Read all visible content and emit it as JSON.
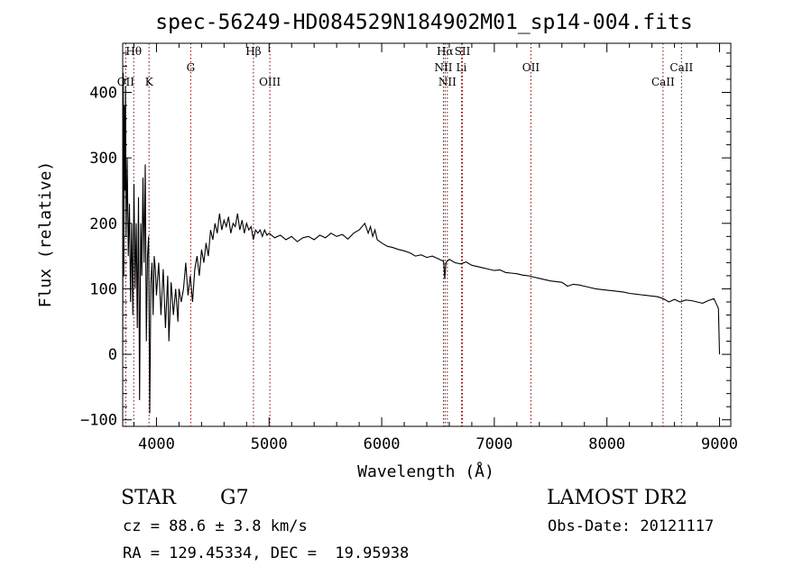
{
  "chart_data": {
    "type": "line",
    "title": "spec-56249-HD084529N184902M01_sp14-004.fits",
    "xlabel": "Wavelength (Å)",
    "ylabel": "Flux (relative)",
    "xlim": [
      3700,
      9100
    ],
    "ylim": [
      -110,
      475
    ],
    "xticks": [
      4000,
      5000,
      6000,
      7000,
      8000,
      9000
    ],
    "yticks": [
      -100,
      0,
      100,
      200,
      300,
      400
    ],
    "x_tick_labels": [
      "4000",
      "5000",
      "6000",
      "7000",
      "8000",
      "9000"
    ],
    "y_tick_labels": [
      "−100",
      "0",
      "100",
      "200",
      "300",
      "400"
    ],
    "line_color": "#000000",
    "marker_color": "#8b0000",
    "series": [
      {
        "values": [
          [
            3700,
            0
          ],
          [
            3705,
            430
          ],
          [
            3710,
            120
          ],
          [
            3715,
            380
          ],
          [
            3720,
            250
          ],
          [
            3725,
            410
          ],
          [
            3730,
            180
          ],
          [
            3740,
            300
          ],
          [
            3750,
            150
          ],
          [
            3760,
            230
          ],
          [
            3770,
            80
          ],
          [
            3780,
            200
          ],
          [
            3790,
            60
          ],
          [
            3800,
            260
          ],
          [
            3810,
            100
          ],
          [
            3820,
            200
          ],
          [
            3830,
            40
          ],
          [
            3840,
            240
          ],
          [
            3850,
            -70
          ],
          [
            3860,
            200
          ],
          [
            3870,
            120
          ],
          [
            3880,
            270
          ],
          [
            3890,
            140
          ],
          [
            3900,
            290
          ],
          [
            3910,
            20
          ],
          [
            3920,
            150
          ],
          [
            3930,
            180
          ],
          [
            3940,
            -90
          ],
          [
            3950,
            110
          ],
          [
            3960,
            140
          ],
          [
            3970,
            60
          ],
          [
            3980,
            150
          ],
          [
            3990,
            130
          ],
          [
            4000,
            90
          ],
          [
            4020,
            140
          ],
          [
            4040,
            60
          ],
          [
            4060,
            130
          ],
          [
            4080,
            40
          ],
          [
            4100,
            120
          ],
          [
            4110,
            20
          ],
          [
            4130,
            110
          ],
          [
            4150,
            60
          ],
          [
            4170,
            100
          ],
          [
            4190,
            50
          ],
          [
            4200,
            100
          ],
          [
            4220,
            80
          ],
          [
            4240,
            100
          ],
          [
            4260,
            140
          ],
          [
            4280,
            90
          ],
          [
            4300,
            120
          ],
          [
            4320,
            80
          ],
          [
            4340,
            130
          ],
          [
            4360,
            150
          ],
          [
            4380,
            120
          ],
          [
            4400,
            160
          ],
          [
            4420,
            140
          ],
          [
            4440,
            170
          ],
          [
            4460,
            150
          ],
          [
            4480,
            190
          ],
          [
            4500,
            175
          ],
          [
            4520,
            200
          ],
          [
            4540,
            185
          ],
          [
            4560,
            215
          ],
          [
            4580,
            190
          ],
          [
            4600,
            205
          ],
          [
            4620,
            195
          ],
          [
            4640,
            210
          ],
          [
            4660,
            185
          ],
          [
            4680,
            200
          ],
          [
            4700,
            195
          ],
          [
            4720,
            215
          ],
          [
            4740,
            190
          ],
          [
            4760,
            205
          ],
          [
            4780,
            185
          ],
          [
            4800,
            200
          ],
          [
            4820,
            190
          ],
          [
            4840,
            195
          ],
          [
            4860,
            175
          ],
          [
            4880,
            190
          ],
          [
            4900,
            185
          ],
          [
            4920,
            190
          ],
          [
            4940,
            180
          ],
          [
            4960,
            190
          ],
          [
            4980,
            182
          ],
          [
            5000,
            185
          ],
          [
            5050,
            178
          ],
          [
            5100,
            182
          ],
          [
            5150,
            175
          ],
          [
            5200,
            180
          ],
          [
            5250,
            172
          ],
          [
            5300,
            178
          ],
          [
            5350,
            180
          ],
          [
            5400,
            175
          ],
          [
            5450,
            182
          ],
          [
            5500,
            178
          ],
          [
            5550,
            185
          ],
          [
            5600,
            180
          ],
          [
            5650,
            183
          ],
          [
            5700,
            176
          ],
          [
            5750,
            185
          ],
          [
            5800,
            190
          ],
          [
            5850,
            200
          ],
          [
            5880,
            185
          ],
          [
            5900,
            195
          ],
          [
            5920,
            180
          ],
          [
            5940,
            190
          ],
          [
            5960,
            175
          ],
          [
            6000,
            170
          ],
          [
            6050,
            165
          ],
          [
            6100,
            163
          ],
          [
            6150,
            160
          ],
          [
            6200,
            158
          ],
          [
            6250,
            155
          ],
          [
            6300,
            150
          ],
          [
            6350,
            152
          ],
          [
            6400,
            148
          ],
          [
            6450,
            150
          ],
          [
            6500,
            146
          ],
          [
            6550,
            142
          ],
          [
            6560,
            115
          ],
          [
            6570,
            140
          ],
          [
            6600,
            145
          ],
          [
            6650,
            140
          ],
          [
            6700,
            138
          ],
          [
            6750,
            141
          ],
          [
            6800,
            136
          ],
          [
            6850,
            134
          ],
          [
            6900,
            132
          ],
          [
            6950,
            130
          ],
          [
            7000,
            128
          ],
          [
            7050,
            129
          ],
          [
            7100,
            125
          ],
          [
            7150,
            124
          ],
          [
            7200,
            123
          ],
          [
            7250,
            121
          ],
          [
            7300,
            120
          ],
          [
            7350,
            118
          ],
          [
            7400,
            116
          ],
          [
            7450,
            114
          ],
          [
            7500,
            112
          ],
          [
            7550,
            111
          ],
          [
            7600,
            110
          ],
          [
            7650,
            104
          ],
          [
            7700,
            107
          ],
          [
            7750,
            106
          ],
          [
            7800,
            104
          ],
          [
            7850,
            102
          ],
          [
            7900,
            100
          ],
          [
            7950,
            99
          ],
          [
            8000,
            98
          ],
          [
            8050,
            97
          ],
          [
            8100,
            96
          ],
          [
            8150,
            95
          ],
          [
            8200,
            93
          ],
          [
            8250,
            92
          ],
          [
            8300,
            91
          ],
          [
            8350,
            90
          ],
          [
            8400,
            89
          ],
          [
            8450,
            88
          ],
          [
            8500,
            85
          ],
          [
            8550,
            80
          ],
          [
            8600,
            84
          ],
          [
            8650,
            80
          ],
          [
            8700,
            83
          ],
          [
            8750,
            82
          ],
          [
            8800,
            80
          ],
          [
            8850,
            78
          ],
          [
            8900,
            82
          ],
          [
            8950,
            85
          ],
          [
            8990,
            70
          ],
          [
            9000,
            0
          ]
        ]
      }
    ],
    "lines": [
      {
        "name": "Hθ",
        "wavelength": 3798,
        "row": 0
      },
      {
        "name": "Hβ",
        "wavelength": 4861,
        "row": 0
      },
      {
        "name": "Hα",
        "wavelength": 6563,
        "row": 0
      },
      {
        "name": "SII",
        "wavelength": 6717,
        "row": 0
      },
      {
        "name": "G",
        "wavelength": 4304,
        "row": 1
      },
      {
        "name": "NII",
        "wavelength": 6548,
        "row": 1
      },
      {
        "name": "Li",
        "wavelength": 6708,
        "row": 1
      },
      {
        "name": "OII",
        "wavelength": 7325,
        "row": 1
      },
      {
        "name": "CaII",
        "wavelength": 8662,
        "row": 1
      },
      {
        "name": "OII",
        "wavelength": 3727,
        "row": 2
      },
      {
        "name": "K",
        "wavelength": 3934,
        "row": 2
      },
      {
        "name": "OIII",
        "wavelength": 5007,
        "row": 2
      },
      {
        "name": "NII",
        "wavelength": 6583,
        "row": 2
      },
      {
        "name": "CaII",
        "wavelength": 8498,
        "row": 2
      }
    ]
  },
  "info": {
    "object_class": "STAR",
    "subclass": "G7",
    "cz": "cz = 88.6 ± 3.8 km/s",
    "radec": "RA = 129.45334, DEC =  19.95938",
    "survey": "LAMOST DR2",
    "obs_date": "Obs-Date: 20121117"
  }
}
